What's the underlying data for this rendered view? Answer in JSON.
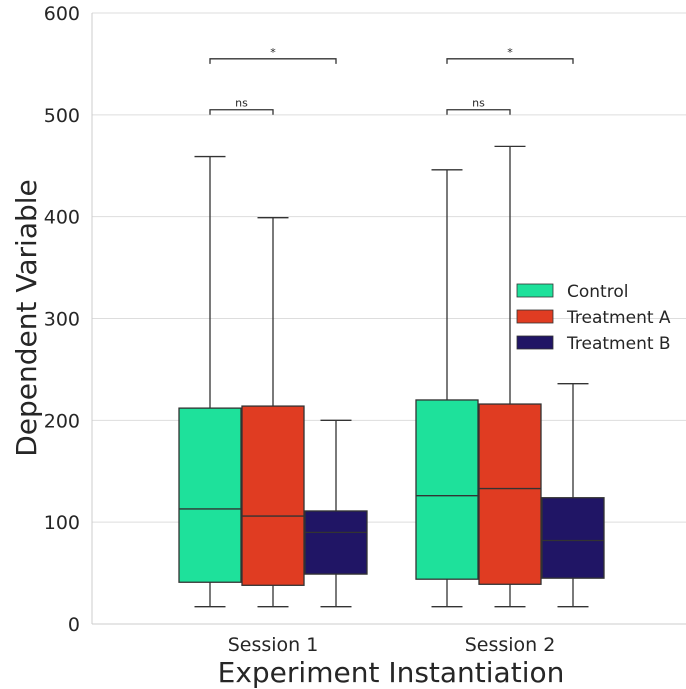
{
  "chart_data": {
    "type": "box",
    "xlabel": "Experiment Instantiation",
    "ylabel": "Dependent Variable",
    "ylim": [
      0,
      600
    ],
    "yticks": [
      0,
      100,
      200,
      300,
      400,
      500,
      600
    ],
    "grid": "horizontal",
    "legend_position": "right",
    "categories": [
      "Session 1",
      "Session 2"
    ],
    "series": [
      {
        "name": "Control",
        "color": "#1ee19b",
        "boxes": [
          {
            "min": 17,
            "q1": 41,
            "median": 113,
            "q3": 212,
            "max": 459
          },
          {
            "min": 17,
            "q1": 44,
            "median": 126,
            "q3": 220,
            "max": 446
          }
        ]
      },
      {
        "name": "Treatment A",
        "color": "#e03c22",
        "boxes": [
          {
            "min": 17,
            "q1": 38,
            "median": 106,
            "q3": 214,
            "max": 399
          },
          {
            "min": 17,
            "q1": 39,
            "median": 133,
            "q3": 216,
            "max": 469
          }
        ]
      },
      {
        "name": "Treatment B",
        "color": "#201565",
        "boxes": [
          {
            "min": 17,
            "q1": 49,
            "median": 90,
            "q3": 111,
            "max": 200
          },
          {
            "min": 17,
            "q1": 45,
            "median": 82,
            "q3": 124,
            "max": 236
          }
        ]
      }
    ],
    "annotations": [
      {
        "category": 0,
        "from_series": 0,
        "to_series": 1,
        "label": "ns",
        "y": 505
      },
      {
        "category": 0,
        "from_series": 0,
        "to_series": 2,
        "label": "*",
        "y": 555
      },
      {
        "category": 1,
        "from_series": 0,
        "to_series": 1,
        "label": "ns",
        "y": 505
      },
      {
        "category": 1,
        "from_series": 0,
        "to_series": 2,
        "label": "*",
        "y": 555
      }
    ]
  }
}
